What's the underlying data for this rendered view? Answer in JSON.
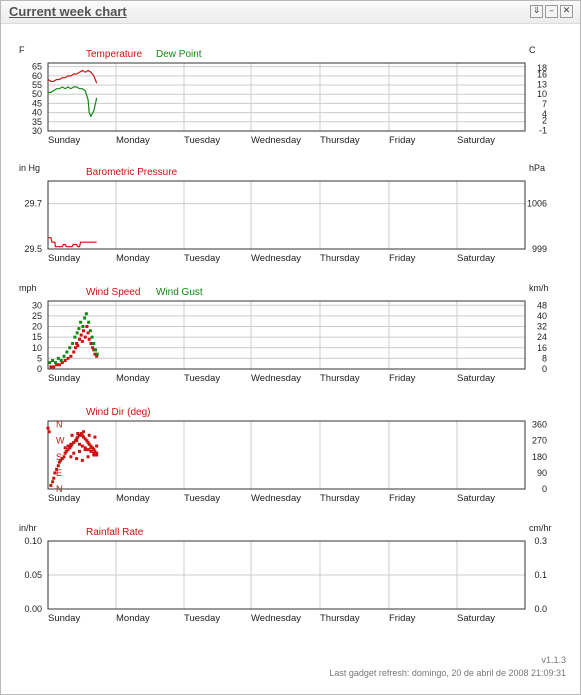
{
  "window": {
    "title": "Current week chart",
    "buttons": [
      {
        "icon": "minimize-to-tray-icon",
        "glyph": "⇓"
      },
      {
        "icon": "minimize-icon",
        "glyph": "–"
      },
      {
        "icon": "close-icon",
        "glyph": "✕"
      }
    ]
  },
  "footer": {
    "version": "v1.1.3",
    "refresh": "Last gadget refresh: domingo, 20 de abril de 2008 21:09:31"
  },
  "colors": {
    "red": "#cc1111",
    "green": "#118811",
    "grid": "#cccccc"
  },
  "chart_data": [
    {
      "type": "line",
      "left_unit": "F",
      "right_unit": "C",
      "series": [
        {
          "name": "Temperature",
          "color": "#cc1111",
          "x": [
            0,
            0.05,
            0.1,
            0.15,
            0.2,
            0.25,
            0.3,
            0.35,
            0.4,
            0.45,
            0.5,
            0.55,
            0.6,
            0.65,
            0.7,
            0.75,
            0.8,
            0.85
          ],
          "values": [
            58,
            57,
            57,
            58,
            58,
            59,
            59,
            60,
            60,
            61,
            61,
            62,
            63,
            62,
            63,
            62,
            60,
            56
          ]
        },
        {
          "name": "Dew Point",
          "color": "#118811",
          "x": [
            0,
            0.05,
            0.1,
            0.15,
            0.2,
            0.25,
            0.3,
            0.35,
            0.4,
            0.45,
            0.5,
            0.55,
            0.6,
            0.65,
            0.7,
            0.72,
            0.75,
            0.8,
            0.85
          ],
          "values": [
            51,
            51,
            52,
            53,
            53,
            54,
            53,
            54,
            53,
            54,
            54,
            53,
            53,
            52,
            47,
            40,
            38,
            41,
            48
          ]
        }
      ],
      "ylim": [
        30,
        67
      ],
      "left_ticks": [
        30,
        35,
        40,
        45,
        50,
        55,
        60,
        65
      ],
      "right_ticks": [
        "-1",
        "2",
        "4",
        "7",
        "10",
        "13",
        "16",
        "18"
      ],
      "right_tick_values": [
        30.2,
        35.6,
        39.2,
        44.6,
        50,
        55.4,
        60.8,
        64.4
      ]
    },
    {
      "type": "line",
      "left_unit": "in Hg",
      "right_unit": "hPa",
      "series": [
        {
          "name": "Barometric Pressure",
          "color": "#cc1111",
          "x": [
            0,
            0.05,
            0.07,
            0.12,
            0.13,
            0.25,
            0.27,
            0.3,
            0.32,
            0.42,
            0.44,
            0.5,
            0.52,
            0.55,
            0.57,
            0.85
          ],
          "values": [
            29.55,
            29.55,
            29.53,
            29.53,
            29.51,
            29.51,
            29.52,
            29.52,
            29.51,
            29.51,
            29.52,
            29.52,
            29.51,
            29.51,
            29.53,
            29.53
          ]
        }
      ],
      "ylim": [
        29.5,
        29.8
      ],
      "left_ticks": [
        29.5,
        29.7
      ],
      "left_tick_labels": [
        "29.5",
        "29.7"
      ],
      "right_ticks": [
        "999",
        "1006"
      ],
      "right_tick_values": [
        29.5,
        29.7
      ]
    },
    {
      "type": "scatter",
      "left_unit": "mph",
      "right_unit": "km/h",
      "series": [
        {
          "name": "Wind Speed",
          "color": "#cc1111",
          "x": [
            0.05,
            0.1,
            0.15,
            0.2,
            0.25,
            0.3,
            0.35,
            0.4,
            0.45,
            0.48,
            0.5,
            0.52,
            0.55,
            0.58,
            0.6,
            0.62,
            0.65,
            0.68,
            0.7,
            0.72,
            0.75,
            0.78,
            0.8,
            0.82,
            0.85
          ],
          "values": [
            1,
            1,
            2,
            2,
            3,
            4,
            5,
            6,
            8,
            10,
            12,
            11,
            14,
            16,
            13,
            18,
            15,
            20,
            17,
            14,
            12,
            10,
            9,
            7,
            6
          ]
        },
        {
          "name": "Wind Gust",
          "color": "#118811",
          "x": [
            0.03,
            0.08,
            0.13,
            0.18,
            0.23,
            0.28,
            0.33,
            0.38,
            0.43,
            0.47,
            0.51,
            0.54,
            0.57,
            0.61,
            0.64,
            0.67,
            0.71,
            0.74,
            0.77,
            0.8,
            0.83,
            0.86
          ],
          "values": [
            3,
            4,
            3,
            5,
            4,
            6,
            8,
            10,
            12,
            15,
            17,
            19,
            22,
            20,
            24,
            26,
            22,
            18,
            15,
            12,
            9,
            7
          ]
        }
      ],
      "ylim": [
        0,
        32
      ],
      "left_ticks": [
        0,
        5,
        10,
        15,
        20,
        25,
        30
      ],
      "right_ticks": [
        "0",
        "8",
        "16",
        "24",
        "32",
        "40",
        "48"
      ],
      "right_tick_values": [
        0,
        5,
        10,
        15,
        20,
        25,
        30
      ]
    },
    {
      "type": "scatter",
      "left_unit": "",
      "right_unit": "",
      "series": [
        {
          "name": "Wind Dir (deg)",
          "color": "#cc1111",
          "x": [
            0,
            0.02,
            0.05,
            0.08,
            0.1,
            0.12,
            0.15,
            0.18,
            0.2,
            0.22,
            0.25,
            0.28,
            0.3,
            0.32,
            0.35,
            0.38,
            0.4,
            0.42,
            0.45,
            0.48,
            0.5,
            0.52,
            0.55,
            0.58,
            0.6,
            0.62,
            0.65,
            0.68,
            0.7,
            0.72,
            0.75,
            0.78,
            0.8,
            0.82,
            0.85,
            0.3,
            0.35,
            0.4,
            0.45,
            0.5,
            0.55,
            0.6,
            0.65,
            0.7,
            0.75,
            0.8,
            0.85,
            0.4,
            0.5,
            0.6,
            0.7,
            0.8,
            0.45,
            0.55,
            0.65,
            0.75,
            0.85,
            0.42,
            0.52,
            0.62,
            0.72,
            0.82
          ],
          "values": [
            340,
            320,
            20,
            40,
            60,
            90,
            110,
            130,
            150,
            160,
            170,
            180,
            200,
            210,
            220,
            230,
            240,
            250,
            260,
            270,
            280,
            290,
            300,
            310,
            300,
            290,
            280,
            270,
            260,
            250,
            240,
            230,
            220,
            210,
            200,
            230,
            240,
            250,
            260,
            270,
            250,
            240,
            230,
            220,
            210,
            200,
            190,
            180,
            170,
            160,
            180,
            190,
            200,
            210,
            220,
            230,
            240,
            300,
            310,
            320,
            300,
            290
          ],
          "markers": [
            {
              "label": "N",
              "deg": 360
            },
            {
              "label": "W",
              "deg": 270
            },
            {
              "label": "S",
              "deg": 180
            },
            {
              "label": "E",
              "deg": 90
            },
            {
              "label": "N",
              "deg": 0
            }
          ]
        }
      ],
      "ylim": [
        0,
        380
      ],
      "left_ticks": [],
      "right_ticks": [
        "0",
        "90",
        "180",
        "270",
        "360"
      ],
      "right_tick_values": [
        0,
        90,
        180,
        270,
        360
      ]
    },
    {
      "type": "line",
      "left_unit": "in/hr",
      "right_unit": "cm/hr",
      "series": [
        {
          "name": "Rainfall Rate",
          "color": "#cc1111",
          "x": [],
          "values": []
        }
      ],
      "ylim": [
        0,
        0.1
      ],
      "left_ticks": [
        0,
        0.05,
        0.1
      ],
      "left_tick_labels": [
        "0.00",
        "0.05",
        "0.10"
      ],
      "right_ticks": [
        "0.0",
        "0.1",
        "0.3"
      ],
      "right_tick_values": [
        0,
        0.05,
        0.1
      ]
    }
  ],
  "days": [
    "Sunday",
    "Monday",
    "Tuesday",
    "Wednesday",
    "Thursday",
    "Friday",
    "Saturday"
  ]
}
